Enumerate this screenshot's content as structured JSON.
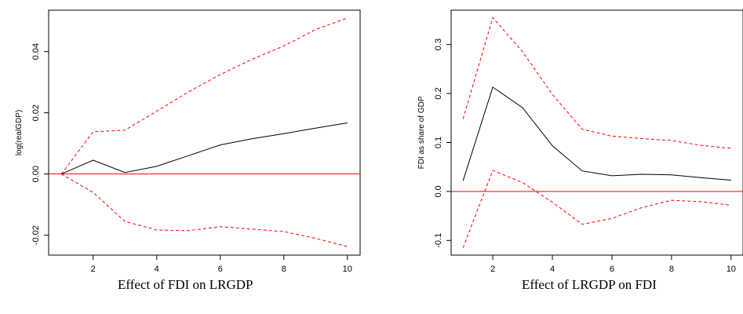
{
  "colors": {
    "response_line": "#000000",
    "confidence_band": "#ff0000",
    "zero_line": "#ff0000",
    "axis": "#000000"
  },
  "chart_data": [
    {
      "type": "line",
      "caption": "Effect of FDI on LRGDP",
      "ylabel": "log(realGDP)",
      "xlabel": "",
      "xlim": [
        0.6,
        10.4
      ],
      "ylim": [
        -0.0265,
        0.0535
      ],
      "x_ticks": [
        2,
        4,
        6,
        8,
        10
      ],
      "x_tick_labels": [
        "2",
        "4",
        "6",
        "8",
        "10"
      ],
      "y_ticks": [
        -0.02,
        0,
        0.02,
        0.04
      ],
      "y_tick_labels": [
        "-0.02",
        "0.00",
        "0.02",
        "0.04"
      ],
      "zero_line": 0,
      "x": [
        1,
        2,
        3,
        4,
        5,
        6,
        7,
        8,
        9,
        10
      ],
      "series": [
        {
          "role": "response",
          "style": "solid",
          "values": [
            0,
            0.0045,
            0.0005,
            0.0025,
            0.006,
            0.0095,
            0.0115,
            0.0132,
            0.015,
            0.0167
          ]
        },
        {
          "role": "upper",
          "style": "dashed",
          "values": [
            0,
            0.0138,
            0.0143,
            0.0205,
            0.0268,
            0.0325,
            0.0375,
            0.0418,
            0.0472,
            0.051
          ]
        },
        {
          "role": "lower",
          "style": "dashed",
          "values": [
            0,
            -0.006,
            -0.0155,
            -0.0183,
            -0.0185,
            -0.0172,
            -0.018,
            -0.0188,
            -0.021,
            -0.0237
          ]
        }
      ]
    },
    {
      "type": "line",
      "caption": "Effect of LRGDP on FDI",
      "ylabel": "FDI as share of GDP",
      "xlabel": "",
      "xlim": [
        0.6,
        10.4
      ],
      "ylim": [
        -0.13,
        0.37
      ],
      "x_ticks": [
        2,
        4,
        6,
        8,
        10
      ],
      "x_tick_labels": [
        "2",
        "4",
        "6",
        "8",
        "10"
      ],
      "y_ticks": [
        -0.1,
        0,
        0.1,
        0.2,
        0.3
      ],
      "y_tick_labels": [
        "-0.1",
        "0.0",
        "0.1",
        "0.2",
        "0.3"
      ],
      "zero_line": 0,
      "x": [
        1,
        2,
        3,
        4,
        5,
        6,
        7,
        8,
        9,
        10
      ],
      "series": [
        {
          "role": "response",
          "style": "solid",
          "values": [
            0.022,
            0.213,
            0.171,
            0.093,
            0.042,
            0.032,
            0.035,
            0.034,
            0.028,
            0.023
          ]
        },
        {
          "role": "upper",
          "style": "dashed",
          "values": [
            0.148,
            0.355,
            0.285,
            0.198,
            0.127,
            0.113,
            0.108,
            0.104,
            0.094,
            0.088
          ]
        },
        {
          "role": "lower",
          "style": "dashed",
          "values": [
            -0.115,
            0.043,
            0.018,
            -0.022,
            -0.067,
            -0.055,
            -0.033,
            -0.018,
            -0.021,
            -0.028
          ]
        }
      ]
    }
  ]
}
